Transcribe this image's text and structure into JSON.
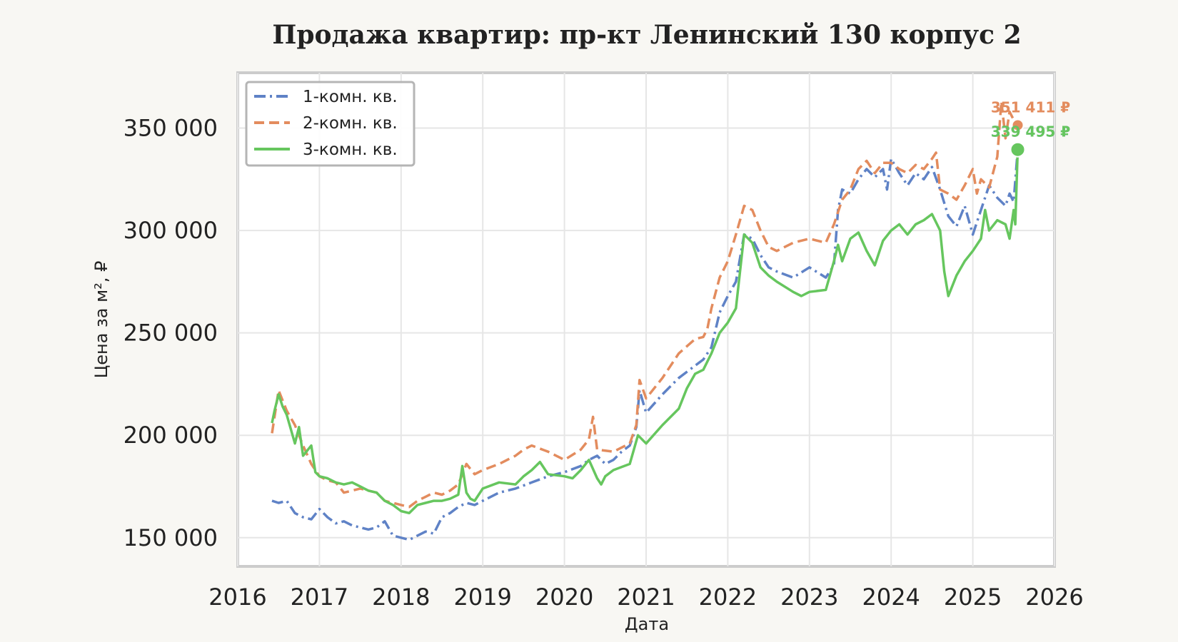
{
  "chart_data": {
    "type": "line",
    "title": "Продажа квартир: пр-кт Ленинский 130 корпус 2",
    "xlabel": "Дата",
    "ylabel": "Цена за м², ₽",
    "xlim": [
      2016.0,
      2026.0
    ],
    "ylim": [
      136000,
      377000
    ],
    "x_ticks": [
      2016,
      2017,
      2018,
      2019,
      2020,
      2021,
      2022,
      2023,
      2024,
      2025,
      2026
    ],
    "x_tick_labels": [
      "2016",
      "2017",
      "2018",
      "2019",
      "2020",
      "2021",
      "2022",
      "2023",
      "2024",
      "2025",
      "2026"
    ],
    "y_ticks": [
      150000,
      200000,
      250000,
      300000,
      350000
    ],
    "y_tick_labels": [
      "150 000",
      "200 000",
      "250 000",
      "300 000",
      "350 000"
    ],
    "grid": true,
    "legend_position": "top-left",
    "series": [
      {
        "name": "1-комн. кв.",
        "color": "#5f82c6",
        "style": "dashdot",
        "x": [
          2016.42,
          2016.5,
          2016.6,
          2016.7,
          2016.8,
          2016.9,
          2017.0,
          2017.1,
          2017.2,
          2017.3,
          2017.4,
          2017.5,
          2017.6,
          2017.7,
          2017.8,
          2017.9,
          2018.0,
          2018.1,
          2018.2,
          2018.3,
          2018.4,
          2018.5,
          2018.6,
          2018.7,
          2018.8,
          2018.9,
          2019.0,
          2019.2,
          2019.4,
          2019.6,
          2019.8,
          2020.0,
          2020.2,
          2020.3,
          2020.4,
          2020.5,
          2020.6,
          2020.7,
          2020.8,
          2020.88,
          2020.92,
          2021.0,
          2021.2,
          2021.4,
          2021.6,
          2021.7,
          2021.8,
          2021.9,
          2022.0,
          2022.1,
          2022.2,
          2022.3,
          2022.4,
          2022.5,
          2022.6,
          2022.8,
          2023.0,
          2023.2,
          2023.3,
          2023.35,
          2023.4,
          2023.5,
          2023.6,
          2023.7,
          2023.8,
          2023.9,
          2023.95,
          2024.0,
          2024.1,
          2024.2,
          2024.3,
          2024.4,
          2024.5,
          2024.6,
          2024.7,
          2024.8,
          2024.9,
          2025.0,
          2025.1,
          2025.2,
          2025.3,
          2025.4,
          2025.45,
          2025.5,
          2025.55
        ],
        "y": [
          168000,
          167000,
          168000,
          162000,
          160000,
          159000,
          164000,
          160000,
          157000,
          158000,
          156000,
          155000,
          154000,
          155000,
          158000,
          151000,
          150000,
          149000,
          151000,
          153000,
          152000,
          160000,
          162000,
          165000,
          167000,
          166000,
          168000,
          172000,
          174000,
          177000,
          180000,
          182000,
          185000,
          188000,
          190000,
          186000,
          188000,
          192000,
          195000,
          204000,
          222000,
          211000,
          220000,
          228000,
          234000,
          237000,
          243000,
          260000,
          268000,
          275000,
          298000,
          296000,
          288000,
          282000,
          280000,
          277000,
          282000,
          277000,
          283000,
          310000,
          320000,
          318000,
          325000,
          330000,
          326000,
          330000,
          320000,
          335000,
          328000,
          322000,
          328000,
          325000,
          331000,
          320000,
          307000,
          302000,
          312000,
          298000,
          310000,
          322000,
          316000,
          312000,
          318000,
          314000,
          339495
        ]
      },
      {
        "name": "2-комн. кв.",
        "color": "#e38c5e",
        "style": "dashed",
        "x": [
          2016.42,
          2016.5,
          2016.6,
          2016.7,
          2016.8,
          2016.9,
          2017.0,
          2017.1,
          2017.2,
          2017.3,
          2017.4,
          2017.5,
          2017.6,
          2017.7,
          2017.8,
          2017.9,
          2018.0,
          2018.1,
          2018.2,
          2018.3,
          2018.4,
          2018.5,
          2018.6,
          2018.7,
          2018.8,
          2018.9,
          2019.0,
          2019.2,
          2019.4,
          2019.5,
          2019.6,
          2019.8,
          2020.0,
          2020.2,
          2020.3,
          2020.35,
          2020.4,
          2020.6,
          2020.8,
          2020.88,
          2020.92,
          2021.0,
          2021.2,
          2021.4,
          2021.6,
          2021.7,
          2021.75,
          2021.8,
          2021.9,
          2022.0,
          2022.1,
          2022.2,
          2022.3,
          2022.4,
          2022.5,
          2022.6,
          2022.8,
          2023.0,
          2023.2,
          2023.3,
          2023.4,
          2023.5,
          2023.6,
          2023.7,
          2023.8,
          2023.9,
          2024.0,
          2024.1,
          2024.2,
          2024.3,
          2024.4,
          2024.5,
          2024.55,
          2024.6,
          2024.7,
          2024.8,
          2024.9,
          2025.0,
          2025.05,
          2025.1,
          2025.2,
          2025.3,
          2025.35,
          2025.4,
          2025.45,
          2025.5,
          2025.55
        ],
        "y": [
          201000,
          222000,
          212000,
          205000,
          195000,
          186000,
          180000,
          178000,
          177000,
          172000,
          173000,
          174000,
          173000,
          172000,
          168000,
          167000,
          166000,
          165000,
          168000,
          170000,
          172000,
          171000,
          173000,
          176000,
          186000,
          181000,
          183000,
          186000,
          190000,
          193000,
          195000,
          192000,
          188000,
          193000,
          198000,
          209000,
          193000,
          192000,
          196000,
          205000,
          227000,
          218000,
          228000,
          240000,
          247000,
          248000,
          252000,
          262000,
          277000,
          285000,
          298000,
          312000,
          310000,
          300000,
          292000,
          290000,
          294000,
          296000,
          294000,
          303000,
          315000,
          320000,
          330000,
          334000,
          328000,
          333000,
          333000,
          330000,
          328000,
          332000,
          330000,
          335000,
          338000,
          320000,
          318000,
          315000,
          322000,
          330000,
          318000,
          325000,
          321000,
          336000,
          363000,
          345000,
          358000,
          354000,
          351411
        ]
      },
      {
        "name": "3-комн. кв.",
        "color": "#66c65e",
        "style": "solid",
        "x": [
          2016.42,
          2016.45,
          2016.5,
          2016.55,
          2016.6,
          2016.7,
          2016.75,
          2016.8,
          2016.9,
          2016.95,
          2017.0,
          2017.1,
          2017.2,
          2017.3,
          2017.4,
          2017.5,
          2017.6,
          2017.7,
          2017.8,
          2017.9,
          2018.0,
          2018.1,
          2018.2,
          2018.3,
          2018.4,
          2018.5,
          2018.6,
          2018.7,
          2018.75,
          2018.8,
          2018.85,
          2018.9,
          2019.0,
          2019.2,
          2019.4,
          2019.5,
          2019.6,
          2019.7,
          2019.8,
          2020.0,
          2020.1,
          2020.2,
          2020.3,
          2020.4,
          2020.45,
          2020.5,
          2020.6,
          2020.8,
          2020.9,
          2021.0,
          2021.2,
          2021.4,
          2021.5,
          2021.6,
          2021.7,
          2021.8,
          2021.9,
          2022.0,
          2022.1,
          2022.2,
          2022.3,
          2022.4,
          2022.5,
          2022.6,
          2022.8,
          2022.9,
          2023.0,
          2023.2,
          2023.3,
          2023.35,
          2023.4,
          2023.5,
          2023.6,
          2023.7,
          2023.8,
          2023.9,
          2024.0,
          2024.1,
          2024.2,
          2024.3,
          2024.4,
          2024.5,
          2024.6,
          2024.65,
          2024.7,
          2024.8,
          2024.9,
          2025.0,
          2025.1,
          2025.15,
          2025.2,
          2025.3,
          2025.4,
          2025.45,
          2025.5,
          2025.52,
          2025.55
        ],
        "y": [
          206000,
          212000,
          220000,
          214000,
          210000,
          196000,
          204000,
          190000,
          195000,
          182000,
          180000,
          179000,
          177000,
          176000,
          177000,
          175000,
          173000,
          172000,
          168000,
          166000,
          163000,
          162000,
          166000,
          167000,
          168000,
          168000,
          169000,
          171000,
          185000,
          172000,
          169000,
          168000,
          174000,
          177000,
          176000,
          180000,
          183000,
          187000,
          181000,
          180000,
          179000,
          183000,
          188000,
          179000,
          176000,
          180000,
          183000,
          186000,
          200000,
          196000,
          205000,
          213000,
          223000,
          230000,
          232000,
          240000,
          250000,
          255000,
          262000,
          298000,
          294000,
          282000,
          278000,
          275000,
          270000,
          268000,
          270000,
          271000,
          285000,
          293000,
          285000,
          296000,
          299000,
          290000,
          283000,
          295000,
          300000,
          303000,
          298000,
          303000,
          305000,
          308000,
          300000,
          280000,
          268000,
          278000,
          285000,
          290000,
          296000,
          310000,
          300000,
          305000,
          303000,
          296000,
          310000,
          303000,
          339495
        ]
      }
    ],
    "end_labels": [
      {
        "text": "351 411 ₽",
        "color": "#e38c5e"
      },
      {
        "text": "339 495 ₽",
        "color": "#5f82c6"
      },
      {
        "text": "339 495 ₽",
        "color": "#66c65e"
      }
    ]
  }
}
